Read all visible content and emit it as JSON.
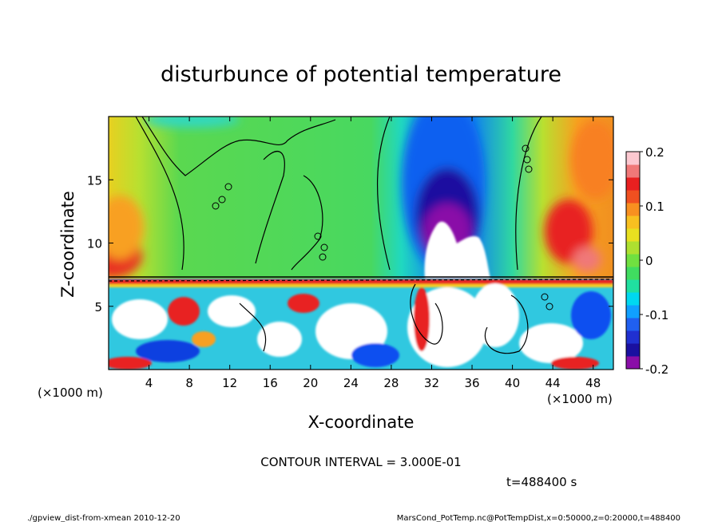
{
  "chart_data": {
    "type": "heatmap",
    "title": "disturbunce of potential temperature",
    "xlabel": "X-coordinate",
    "ylabel": "Z-coordinate",
    "x_unit_label": "(×1000 m)",
    "y_unit_label": "(×1000 m)",
    "x_ticks": [
      4,
      8,
      12,
      16,
      20,
      24,
      28,
      32,
      36,
      40,
      44,
      48
    ],
    "y_ticks": [
      5,
      10,
      15
    ],
    "xlim": [
      0,
      50
    ],
    "ylim": [
      0,
      20
    ],
    "colorbar": {
      "ticks": [
        "0.2",
        "0.1",
        "0",
        "-0.1",
        "-0.2"
      ],
      "tick_values": [
        0.2,
        0.1,
        0,
        -0.1,
        -0.2
      ],
      "range": [
        -0.2,
        0.2
      ],
      "colors": [
        "#8a0ea8",
        "#1a10a0",
        "#2030d0",
        "#2060f0",
        "#10a0ff",
        "#00d8f0",
        "#20e0a0",
        "#40dc60",
        "#70e040",
        "#aee030",
        "#e8e020",
        "#f8c020",
        "#f89020",
        "#f05020",
        "#e82020",
        "#f07878",
        "#fcc8d0"
      ]
    },
    "contour_interval_text": "CONTOUR INTERVAL = 3.000E-01",
    "time_text": "t=488400  s"
  },
  "footer": {
    "left": "./gpview_dist-from-xmean  2010-12-20",
    "right": "MarsCond_PotTemp.nc@PotTempDist,x=0:50000,z=0:20000,t=488400"
  }
}
